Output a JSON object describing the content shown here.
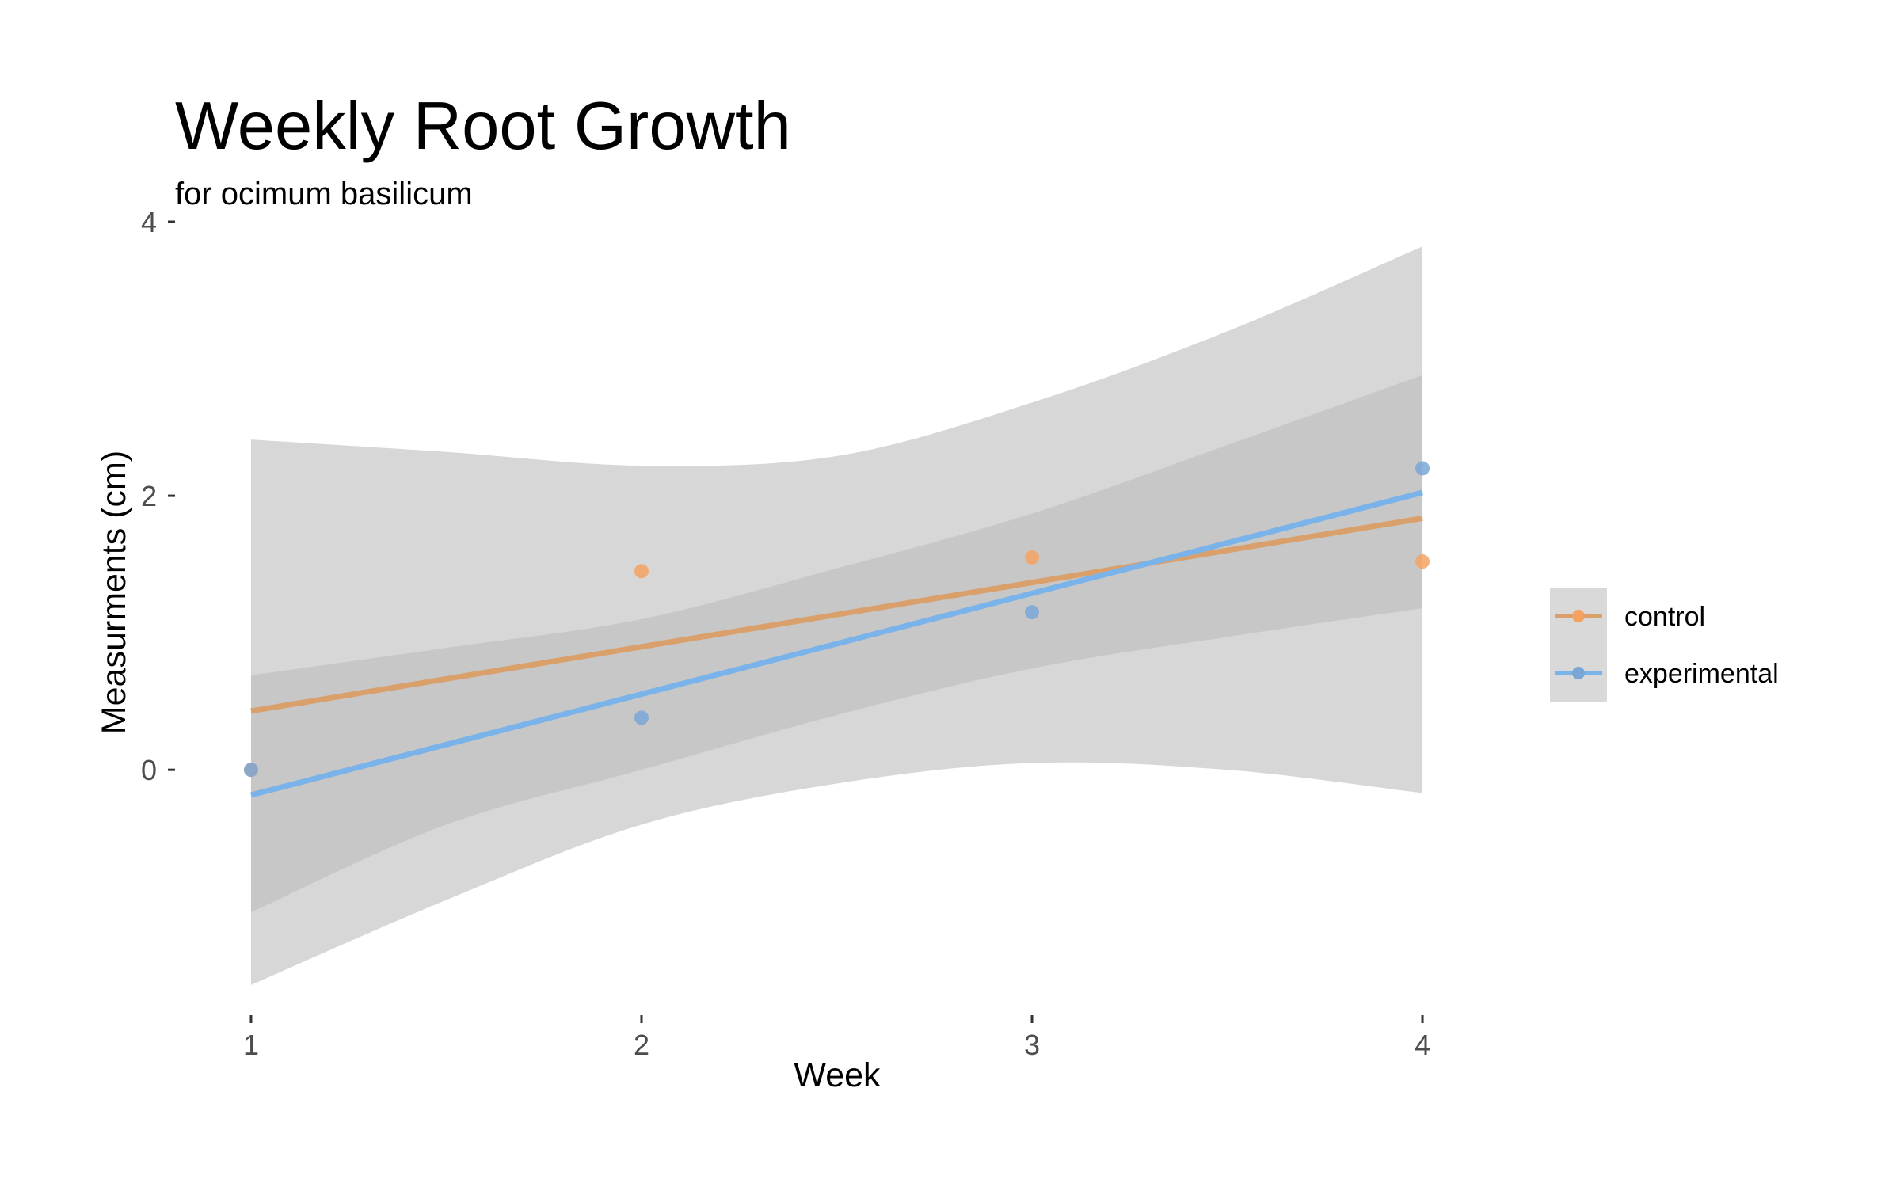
{
  "chart_data": {
    "type": "scatter",
    "title": "Weekly Root Growth",
    "subtitle": "for  ocimum basilicum",
    "xlabel": "Week",
    "ylabel": "Measurments (cm)",
    "xlim": [
      0.85,
      4.15
    ],
    "ylim": [
      -1.75,
      4
    ],
    "x_ticks": [
      1,
      2,
      3,
      4
    ],
    "y_ticks": [
      0,
      2,
      4
    ],
    "grid": false,
    "legend_position": "right",
    "series": [
      {
        "name": "control",
        "color": "#f4a261",
        "line_color": "#d9a06c",
        "points": [
          [
            1,
            0
          ],
          [
            2,
            1.45
          ],
          [
            3,
            1.55
          ],
          [
            4,
            1.52
          ]
        ],
        "fit": {
          "intercept": -0.04,
          "slope": 0.469
        },
        "band": [
          {
            "x": 1.0,
            "lo": -1.04,
            "hi": 0.69
          },
          {
            "x": 1.5,
            "lo": -0.4,
            "hi": 0.89
          },
          {
            "x": 2.0,
            "lo": 0.0,
            "hi": 1.1
          },
          {
            "x": 2.5,
            "lo": 0.4,
            "hi": 1.47
          },
          {
            "x": 3.0,
            "lo": 0.74,
            "hi": 1.87
          },
          {
            "x": 3.5,
            "lo": 0.97,
            "hi": 2.37
          },
          {
            "x": 4.0,
            "lo": 1.18,
            "hi": 2.88
          }
        ]
      },
      {
        "name": "experimental",
        "color": "#7aa6d6",
        "line_color": "#7ab3ea",
        "points": [
          [
            1,
            0
          ],
          [
            2,
            0.38
          ],
          [
            3,
            1.15
          ],
          [
            4,
            2.2
          ]
        ],
        "fit": {
          "intercept": -0.92,
          "slope": 0.736
        },
        "band": [
          {
            "x": 1.0,
            "lo": -1.57,
            "hi": 2.41
          },
          {
            "x": 1.5,
            "lo": -0.95,
            "hi": 2.32
          },
          {
            "x": 2.0,
            "lo": -0.4,
            "hi": 2.22
          },
          {
            "x": 2.5,
            "lo": -0.1,
            "hi": 2.29
          },
          {
            "x": 3.0,
            "lo": 0.05,
            "hi": 2.68
          },
          {
            "x": 3.5,
            "lo": 0.0,
            "hi": 3.2
          },
          {
            "x": 4.0,
            "lo": -0.17,
            "hi": 3.82
          }
        ]
      }
    ]
  },
  "colors": {
    "band_fill": "#bdbdbd",
    "legend_key_bg": "#d9d9d9",
    "tick_color": "#333333"
  }
}
